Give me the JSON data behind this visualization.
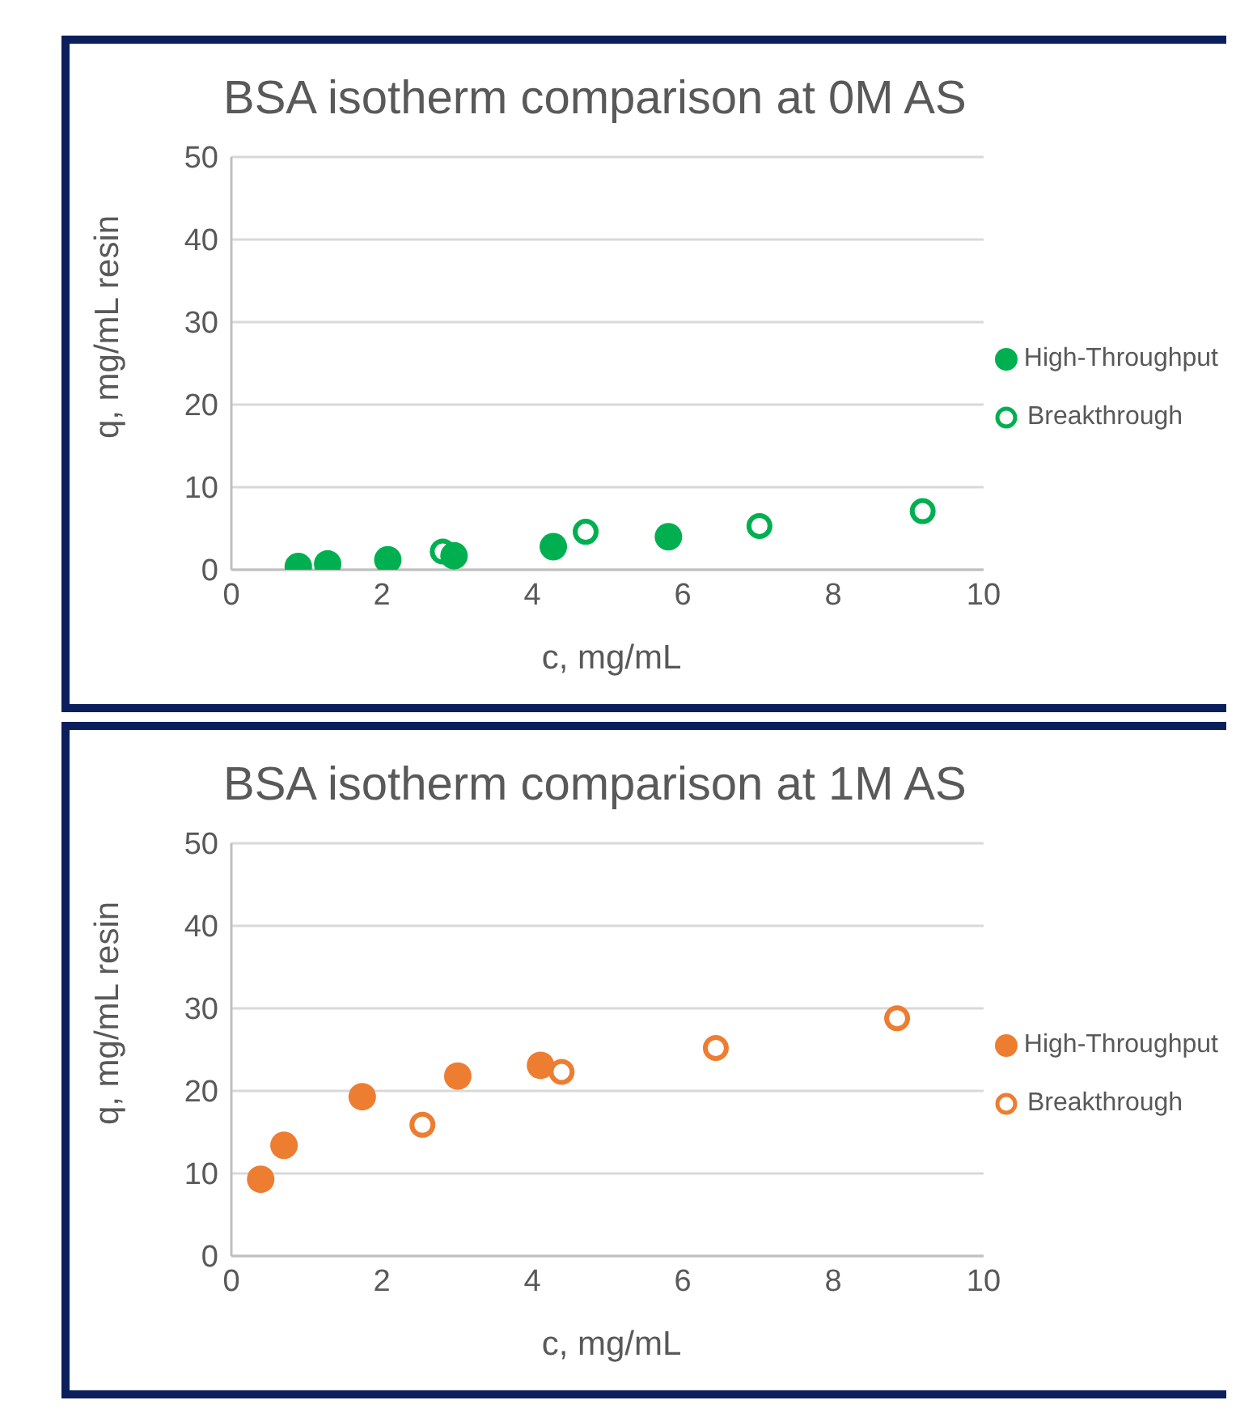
{
  "chart_data": [
    {
      "type": "scatter",
      "title": "BSA isotherm comparison at 0M AS",
      "xlabel": "c, mg/mL",
      "ylabel": "q, mg/mL resin",
      "xlim": [
        0,
        10
      ],
      "xticks": [
        0,
        2,
        4,
        6,
        8,
        10
      ],
      "ylim": [
        0,
        50
      ],
      "yticks": [
        0,
        10,
        20,
        30,
        40,
        50
      ],
      "grid": "y",
      "legend": "right",
      "marker": "circle",
      "series": [
        {
          "name": "High-Throughput",
          "color": "#00b050",
          "x": [
            0.89,
            1.28,
            2.08,
            2.96,
            4.28,
            5.81
          ],
          "values": [
            0.4,
            0.7,
            1.2,
            1.7,
            2.8,
            4.0
          ]
        },
        {
          "name": "Breakthrough",
          "color": "#00b050",
          "x": [
            2.81,
            4.71,
            7.02,
            9.19
          ],
          "values": [
            2.2,
            4.6,
            5.3,
            7.1
          ]
        }
      ]
    },
    {
      "type": "scatter",
      "title": "BSA isotherm comparison at 1M AS",
      "xlabel": "c, mg/mL",
      "ylabel": "q, mg/mL resin",
      "xlim": [
        0,
        10
      ],
      "xticks": [
        0,
        2,
        4,
        6,
        8,
        10
      ],
      "ylim": [
        0,
        50
      ],
      "yticks": [
        0,
        10,
        20,
        30,
        40,
        50
      ],
      "grid": "y",
      "legend": "right",
      "marker": "circle",
      "series": [
        {
          "name": "High-Throughput",
          "color": "#ed7d31",
          "x": [
            0.39,
            0.7,
            1.74,
            3.01,
            4.11
          ],
          "values": [
            9.3,
            13.4,
            19.3,
            21.8,
            23.1
          ]
        },
        {
          "name": "Breakthrough",
          "color": "#ed7d31",
          "x": [
            2.54,
            4.39,
            6.44,
            8.85
          ],
          "values": [
            15.9,
            22.3,
            25.2,
            28.8
          ]
        }
      ]
    }
  ]
}
